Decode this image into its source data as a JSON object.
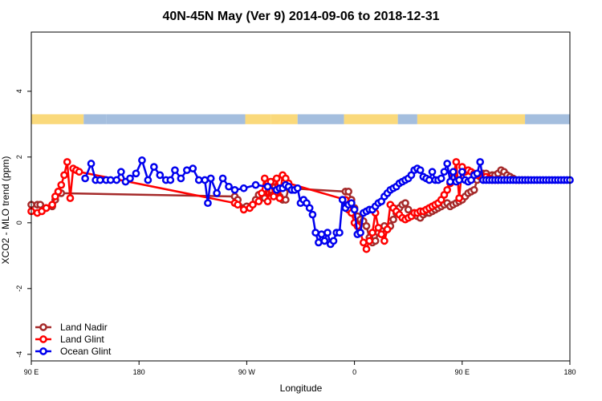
{
  "chart_data": {
    "type": "line",
    "title": "40N-45N May (Ver 9)   2014-09-06 to 2018-12-31",
    "xlabel": "Longitude",
    "ylabel": "XCO2 - MLO trend (ppm)",
    "xlim": [
      90,
      450
    ],
    "ylim": [
      -4.2,
      5.8
    ],
    "x_ticks": [
      {
        "value": 90,
        "label": "90 E"
      },
      {
        "value": 162,
        "label": "180"
      },
      {
        "value": 234,
        "label": "90 W"
      },
      {
        "value": 306,
        "label": "0"
      },
      {
        "value": 378,
        "label": "90 E"
      },
      {
        "value": 450,
        "label": "180"
      }
    ],
    "y_ticks": [
      {
        "value": -4,
        "label": "-4"
      },
      {
        "value": -2,
        "label": "-2"
      },
      {
        "value": 0,
        "label": "0"
      },
      {
        "value": 2,
        "label": "2"
      },
      {
        "value": 4,
        "label": "4"
      }
    ],
    "legend_position": "bottom-left",
    "land_ocean_strip": {
      "y_range": [
        3.0,
        3.3
      ],
      "land_color": "#fad97b",
      "ocean_color": "#a4bede",
      "segments": [
        {
          "from": 90,
          "to": 125,
          "type": "land"
        },
        {
          "from": 125,
          "to": 140,
          "type": "ocean"
        },
        {
          "from": 140,
          "to": 233,
          "type": "ocean"
        },
        {
          "from": 233,
          "to": 250,
          "type": "land"
        },
        {
          "from": 250,
          "to": 268,
          "type": "land"
        },
        {
          "from": 268,
          "to": 299,
          "type": "ocean"
        },
        {
          "from": 299,
          "to": 335,
          "type": "land"
        },
        {
          "from": 335,
          "to": 348,
          "type": "ocean"
        },
        {
          "from": 348,
          "to": 420,
          "type": "land"
        },
        {
          "from": 420,
          "to": 450,
          "type": "ocean"
        }
      ]
    },
    "series": [
      {
        "name": "Land Nadir",
        "color": "#a52a2a",
        "x": [
          90,
          94,
          96,
          100,
          104,
          106,
          108,
          110,
          226,
          228,
          232,
          234,
          238,
          240,
          242,
          246,
          248,
          250,
          252,
          254,
          256,
          258,
          260,
          262,
          300,
          302,
          304,
          306,
          308,
          310,
          312,
          314,
          316,
          318,
          320,
          322,
          324,
          326,
          328,
          330,
          332,
          334,
          336,
          338,
          340,
          342,
          344,
          346,
          348,
          350,
          352,
          354,
          356,
          358,
          360,
          362,
          364,
          366,
          368,
          370,
          372,
          374,
          376,
          378,
          380,
          382,
          384,
          386,
          388,
          390,
          392,
          394,
          396,
          398,
          400,
          402,
          404,
          406,
          408,
          410,
          412,
          414,
          416,
          418,
          420,
          422
        ],
        "y": [
          0.55,
          0.55,
          0.55,
          0.45,
          0.5,
          0.7,
          0.95,
          0.9,
          0.8,
          0.7,
          0.45,
          0.5,
          0.55,
          0.7,
          0.85,
          0.75,
          0.9,
          1.0,
          1.25,
          1.0,
          0.8,
          0.7,
          0.7,
          1.05,
          0.95,
          0.95,
          0.7,
          0.45,
          0.2,
          0.1,
          0.05,
          -0.1,
          -0.45,
          -0.6,
          -0.55,
          -0.3,
          -0.2,
          -0.1,
          -0.2,
          -0.1,
          0.1,
          0.3,
          0.45,
          0.55,
          0.6,
          0.4,
          0.2,
          0.3,
          0.2,
          0.15,
          0.25,
          0.3,
          0.3,
          0.35,
          0.4,
          0.45,
          0.5,
          0.55,
          0.6,
          0.5,
          0.55,
          0.6,
          0.65,
          0.7,
          0.8,
          0.9,
          0.95,
          1.0,
          1.3,
          1.4,
          1.5,
          1.5,
          1.4,
          1.45,
          1.45,
          1.5,
          1.6,
          1.55,
          1.45,
          1.4,
          1.35,
          1.3,
          1.3,
          1.3,
          1.3,
          1.3
        ],
        "y_note": "approximate trace"
      },
      {
        "name": "Land Glint",
        "color": "#ff0000",
        "x": [
          90,
          94,
          97,
          100,
          104,
          106,
          108,
          110,
          112,
          114,
          116,
          118,
          120,
          122,
          226,
          228,
          232,
          236,
          238,
          242,
          244,
          246,
          248,
          250,
          252,
          254,
          256,
          258,
          260,
          262,
          300,
          302,
          304,
          306,
          308,
          310,
          312,
          314,
          316,
          318,
          320,
          322,
          324,
          326,
          328,
          330,
          332,
          334,
          336,
          338,
          340,
          342,
          344,
          346,
          348,
          350,
          352,
          354,
          356,
          358,
          360,
          362,
          364,
          366,
          368,
          370,
          372,
          374,
          376,
          378,
          380,
          382,
          384,
          386,
          388,
          390,
          392,
          394,
          396,
          398,
          400,
          402
        ],
        "y": [
          0.35,
          0.3,
          0.35,
          0.45,
          0.55,
          0.8,
          0.95,
          1.15,
          1.45,
          1.85,
          0.75,
          1.65,
          1.6,
          1.55,
          0.6,
          0.55,
          0.4,
          0.45,
          0.55,
          0.65,
          0.9,
          1.35,
          0.65,
          1.25,
          0.8,
          1.35,
          0.75,
          1.45,
          1.35,
          1.2,
          0.7,
          0.4,
          0.3,
          0.0,
          -0.1,
          -0.3,
          -0.6,
          -0.8,
          -0.55,
          -0.3,
          0.3,
          -0.15,
          -0.35,
          -0.55,
          -0.2,
          0.55,
          0.45,
          0.35,
          0.25,
          0.15,
          0.1,
          0.15,
          0.2,
          0.3,
          0.3,
          0.35,
          0.35,
          0.4,
          0.45,
          0.5,
          0.55,
          0.6,
          0.7,
          0.85,
          1.0,
          1.2,
          1.4,
          1.85,
          0.75,
          1.7,
          1.55,
          1.6,
          1.55,
          1.5,
          1.45,
          1.45,
          1.4,
          1.4,
          1.35,
          1.3,
          1.3,
          1.3
        ],
        "y_note": "approximate trace"
      },
      {
        "name": "Ocean Glint",
        "color": "#0000ee",
        "x": [
          126,
          130,
          133,
          136,
          140,
          143,
          147,
          150,
          153,
          156,
          160,
          164,
          168,
          172,
          176,
          180,
          183,
          186,
          190,
          194,
          198,
          202,
          206,
          208,
          210,
          214,
          218,
          222,
          226,
          232,
          240,
          248,
          254,
          256,
          258,
          260,
          262,
          264,
          266,
          268,
          270,
          272,
          274,
          276,
          278,
          280,
          282,
          284,
          286,
          288,
          290,
          292,
          294,
          296,
          298,
          300,
          302,
          304,
          306,
          308,
          310,
          312,
          314,
          316,
          318,
          320,
          322,
          324,
          326,
          328,
          330,
          332,
          334,
          336,
          338,
          340,
          342,
          344,
          346,
          348,
          350,
          352,
          354,
          356,
          358,
          360,
          362,
          364,
          366,
          368,
          370,
          372,
          374,
          376,
          378,
          380,
          382,
          384,
          386,
          388,
          390,
          392,
          394,
          396,
          398,
          400,
          402,
          404,
          406,
          408,
          410,
          412,
          414,
          416,
          418,
          420,
          422,
          424,
          426,
          428,
          430,
          432,
          434,
          436,
          438,
          440,
          442,
          444,
          446,
          448,
          450
        ],
        "y": [
          1.35,
          1.8,
          1.3,
          1.3,
          1.3,
          1.3,
          1.3,
          1.55,
          1.25,
          1.35,
          1.5,
          1.9,
          1.3,
          1.7,
          1.45,
          1.3,
          1.3,
          1.6,
          1.35,
          1.6,
          1.65,
          1.3,
          1.3,
          0.6,
          1.35,
          0.9,
          1.35,
          1.1,
          1.0,
          1.05,
          1.15,
          1.1,
          1.0,
          1.05,
          1.05,
          1.15,
          1.1,
          1.0,
          1.0,
          1.05,
          0.6,
          0.7,
          0.6,
          0.45,
          0.25,
          -0.3,
          -0.6,
          -0.35,
          -0.55,
          -0.3,
          -0.65,
          -0.55,
          -0.3,
          -0.3,
          0.7,
          0.45,
          0.55,
          0.6,
          0.4,
          -0.35,
          -0.3,
          0.3,
          0.35,
          0.4,
          0.4,
          0.5,
          0.6,
          0.65,
          0.8,
          0.9,
          1.0,
          1.05,
          1.1,
          1.2,
          1.25,
          1.3,
          1.35,
          1.45,
          1.6,
          1.65,
          1.6,
          1.4,
          1.35,
          1.3,
          1.55,
          1.3,
          1.3,
          1.35,
          1.55,
          1.8,
          1.25,
          1.55,
          1.25,
          1.3,
          1.55,
          1.3,
          1.25,
          1.3,
          1.45,
          1.5,
          1.85,
          1.3,
          1.3,
          1.3,
          1.3,
          1.3,
          1.3,
          1.3,
          1.3,
          1.3,
          1.3,
          1.3,
          1.3,
          1.3,
          1.3,
          1.3,
          1.3,
          1.3,
          1.3,
          1.3,
          1.3,
          1.3,
          1.3,
          1.3,
          1.3,
          1.3,
          1.3,
          1.3,
          1.3,
          1.3,
          1.3
        ],
        "y_note": "approximate trace"
      }
    ]
  }
}
